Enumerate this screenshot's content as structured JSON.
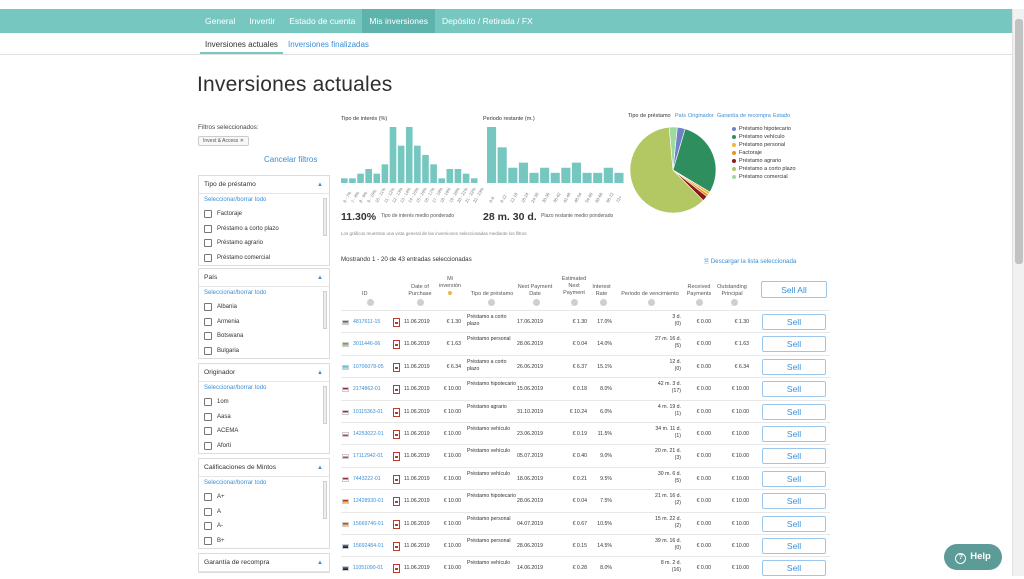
{
  "nav": {
    "items": [
      "General",
      "Invertir",
      "Estado de cuenta",
      "Mis inversiones",
      "Depósito / Retirada / FX"
    ],
    "active_index": 3
  },
  "subnav": {
    "active": "Inversiones actuales",
    "link": "Inversiones finalizadas"
  },
  "page_title": "Inversiones actuales",
  "filters": {
    "caption": "Filtros seleccionados:",
    "chip": "Invest & Access",
    "cancel": "Cancelar filtros",
    "select_all": "Seleccionar/borrar todo",
    "facets": [
      {
        "title": "Tipo de préstamo",
        "options": [
          "Factoraje",
          "Préstamo a corto plazo",
          "Préstamo agrario",
          "Préstamo comercial"
        ]
      },
      {
        "title": "País",
        "options": [
          "Albania",
          "Armenia",
          "Botswana",
          "Bulgaria"
        ]
      },
      {
        "title": "Originador",
        "options": [
          "1om",
          "Aasa",
          "ACEMA",
          "Aforti"
        ]
      },
      {
        "title": "Calificaciones de Mintos",
        "options": [
          "A+",
          "A",
          "A-",
          "B+"
        ]
      },
      {
        "title": "Garantía de recompra",
        "options": []
      }
    ]
  },
  "interest_chart": {
    "title": "Tipo de interés (%)",
    "summary_value": "11.30%",
    "summary_label": "Tipo de interés medio ponderado"
  },
  "term_chart": {
    "title": "Periodo restante (m.)",
    "summary_value": "28 m. 30 d.",
    "summary_label": "Plazo restante medio ponderado"
  },
  "pie": {
    "tabs": [
      "Tipo de préstamo",
      "País",
      "Originador",
      "Garantía de recompra",
      "Estado"
    ],
    "legend": [
      {
        "label": "Préstamo hipotecario",
        "color": "#6f82c8"
      },
      {
        "label": "Préstamo vehículo",
        "color": "#2f8e5e"
      },
      {
        "label": "Préstamo personal",
        "color": "#f0b73c"
      },
      {
        "label": "Factoraje",
        "color": "#e8922a"
      },
      {
        "label": "Préstamo agrario",
        "color": "#8b1a1a"
      },
      {
        "label": "Préstamo a corto plazo",
        "color": "#b3c862"
      },
      {
        "label": "Préstamo comercial",
        "color": "#9ed9a0"
      }
    ]
  },
  "charts_note": "Los gráficos muestran una vista general de las inversiones seleccionadas mediante los filtros",
  "showing": "Mostrando 1 - 20 de 43 entradas seleccionadas",
  "download": "Descargar la lista seleccionada",
  "columns": {
    "id": "ID",
    "date": "Date of Purchase",
    "inv": "Mi inversión",
    "type": "Tipo de préstamo",
    "np": "Next Payment Date",
    "enp": "Estimated Next Payment",
    "ir": "Interest Rate",
    "mat": "Periodo de vencimiento",
    "rp": "Received Payments",
    "op": "Outstanding Principal"
  },
  "sell_all": "Sell All",
  "sell_label": "Sell",
  "help_label": "Help",
  "chart_data": [
    {
      "type": "bar",
      "title": "Tipo de interés (%)",
      "categories": [
        "6 - 7%",
        "7 - 8%",
        "8 - 9%",
        "9 - 10%",
        "10 - 11%",
        "11 - 12%",
        "12 - 13%",
        "13 - 14%",
        "14 - 15%",
        "15 - 16%",
        "16 - 17%",
        "17 - 18%",
        "18 - 19%",
        "19 - 20%",
        "20 - 21%",
        "21 - 22%",
        "22 - 23%"
      ],
      "values": [
        1,
        1,
        2,
        3,
        2,
        4,
        12,
        8,
        12,
        8,
        6,
        4,
        1,
        3,
        3,
        2,
        1
      ]
    },
    {
      "type": "bar",
      "title": "Periodo restante (m.)",
      "categories": [
        "0-6",
        "6-12",
        "12-18",
        "18-24",
        "24-30",
        "30-36",
        "36-42",
        "42-48",
        "48-54",
        "54-60",
        "60-66",
        "66-72",
        "72+"
      ],
      "values": [
        11,
        7,
        3,
        4,
        2,
        3,
        2,
        3,
        4,
        2,
        2,
        3,
        2
      ]
    },
    {
      "type": "pie",
      "title": "Tipo de préstamo",
      "labels": [
        "Préstamo hipotecario",
        "Préstamo vehículo",
        "Préstamo personal",
        "Factoraje",
        "Préstamo agrario",
        "Préstamo a corto plazo",
        "Préstamo comercial"
      ],
      "values": [
        3,
        29,
        1,
        1,
        2,
        61,
        3
      ]
    }
  ],
  "rows": [
    {
      "flag": "ua",
      "id": "4817611-15",
      "date": "11.06.2019",
      "inv": "€ 1.30",
      "type": "Préstamo a corto plazo",
      "np": "17.06.2019",
      "enp": "€ 1.30",
      "ir": "17.0%",
      "mat": "3 d.",
      "mat2": "(0)",
      "rp": "€ 0.00",
      "op": "€ 1.30"
    },
    {
      "flag": "kz",
      "id": "3011446-06",
      "date": "11.06.2019",
      "inv": "€ 1.63",
      "type": "Préstamo personal",
      "np": "28.06.2019",
      "enp": "€ 0.04",
      "ir": "14.0%",
      "mat": "27 m. 16 d.",
      "mat2": "(5)",
      "rp": "€ 0.00",
      "op": "€ 1.63"
    },
    {
      "flag": "kz2",
      "id": "10706078-05",
      "date": "11.06.2019",
      "inv": "€ 6.34",
      "type": "Préstamo a corto plazo",
      "np": "26.06.2019",
      "enp": "€ 6.37",
      "ir": "15.1%",
      "mat": "12 d.",
      "mat2": "(0)",
      "rp": "€ 0.00",
      "op": "€ 6.34"
    },
    {
      "flag": "lv",
      "id": "2174862-01",
      "date": "11.06.2019",
      "inv": "€ 10.00",
      "type": "Préstamo hipotecario",
      "np": "15.06.2019",
      "enp": "€ 0.18",
      "ir": "8.0%",
      "mat": "42 m. 3 d.",
      "mat2": "(17)",
      "rp": "€ 0.00",
      "op": "€ 10.00"
    },
    {
      "flag": "lv",
      "id": "10115363-01",
      "date": "11.06.2019",
      "inv": "€ 10.00",
      "type": "Préstamo agrario",
      "np": "31.10.2019",
      "enp": "€ 10.24",
      "ir": "6.0%",
      "mat": "4 m. 19 d.",
      "mat2": "(1)",
      "rp": "€ 0.00",
      "op": "€ 10.00"
    },
    {
      "flag": "bg",
      "id": "14253022-01",
      "date": "11.06.2019",
      "inv": "€ 10.00",
      "type": "Préstamo vehículo",
      "np": "23.06.2019",
      "enp": "€ 0.19",
      "ir": "11.5%",
      "mat": "34 m. 11 d.",
      "mat2": "(1)",
      "rp": "€ 0.00",
      "op": "€ 10.00"
    },
    {
      "flag": "ge",
      "id": "17112942-01",
      "date": "11.06.2019",
      "inv": "€ 10.00",
      "type": "Préstamo vehículo",
      "np": "05.07.2019",
      "enp": "€ 0.40",
      "ir": "9.0%",
      "mat": "20 m. 21 d.",
      "mat2": "(3)",
      "rp": "€ 0.00",
      "op": "€ 10.00"
    },
    {
      "flag": "lv",
      "id": "7443222-01",
      "date": "11.06.2019",
      "inv": "€ 10.00",
      "type": "Préstamo vehículo",
      "np": "18.06.2019",
      "enp": "€ 0.21",
      "ir": "9.5%",
      "mat": "30 m. 6 d.",
      "mat2": "(5)",
      "rp": "€ 0.00",
      "op": "€ 10.00"
    },
    {
      "flag": "es",
      "id": "12428930-01",
      "date": "11.06.2019",
      "inv": "€ 10.00",
      "type": "Préstamo hipotecario",
      "np": "28.06.2019",
      "enp": "€ 0.04",
      "ir": "7.5%",
      "mat": "21 m. 16 d.",
      "mat2": "(2)",
      "rp": "€ 0.00",
      "op": "€ 10.00"
    },
    {
      "flag": "mk",
      "id": "15669746-01",
      "date": "11.06.2019",
      "inv": "€ 10.00",
      "type": "Préstamo personal",
      "np": "04.07.2019",
      "enp": "€ 0.67",
      "ir": "10.5%",
      "mat": "15 m. 22 d.",
      "mat2": "(2)",
      "rp": "€ 0.00",
      "op": "€ 10.00"
    },
    {
      "flag": "ee",
      "id": "15692484-01",
      "date": "11.06.2019",
      "inv": "€ 10.00",
      "type": "Préstamo personal",
      "np": "28.06.2019",
      "enp": "€ 0.15",
      "ir": "14.5%",
      "mat": "39 m. 16 d.",
      "mat2": "(0)",
      "rp": "€ 0.00",
      "op": "€ 10.00"
    },
    {
      "flag": "ee",
      "id": "11051090-01",
      "date": "11.06.2019",
      "inv": "€ 10.00",
      "type": "Préstamo vehículo",
      "np": "14.06.2019",
      "enp": "€ 0.28",
      "ir": "8.0%",
      "mat": "8 m. 2 d.",
      "mat2": "(16)",
      "rp": "€ 0.00",
      "op": "€ 10.00"
    }
  ]
}
